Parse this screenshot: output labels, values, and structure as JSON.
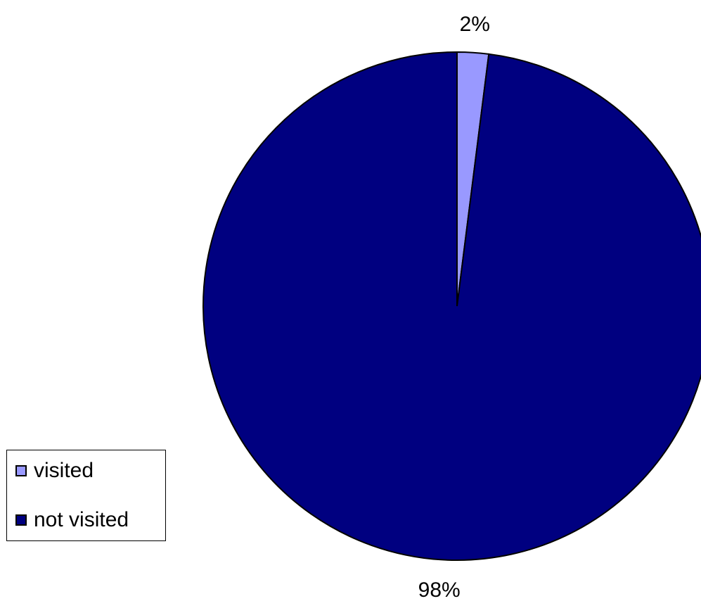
{
  "chart_data": {
    "type": "pie",
    "slices": [
      {
        "label": "visited",
        "value": 2,
        "data_label": "2%",
        "color": "#9999FF"
      },
      {
        "label": "not visited",
        "value": 98,
        "data_label": "98%",
        "color": "#000080"
      }
    ],
    "legend": {
      "placement": "bottom-left",
      "entries": [
        "visited",
        "not visited"
      ]
    },
    "start_angle_deg": 0,
    "direction": "clockwise",
    "outline_color": "#000000"
  }
}
